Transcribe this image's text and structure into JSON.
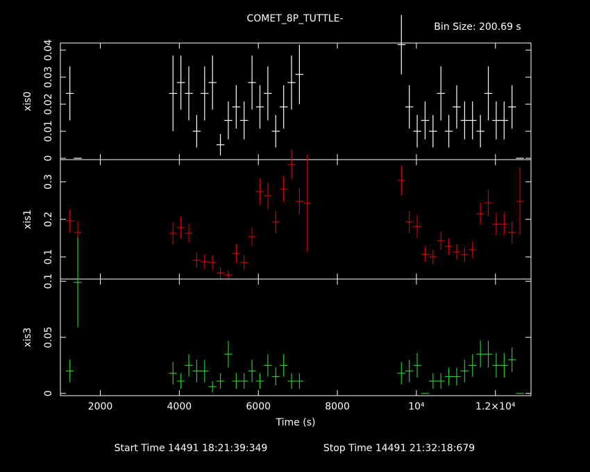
{
  "title": "COMET_8P_TUTTLE-",
  "bin_size": "Bin Size: 200.69 s",
  "start_time": "Start Time 14491 18:21:39:349",
  "stop_time": "Stop Time 14491 21:32:18:679",
  "chart_data": [
    {
      "type": "errorbar",
      "ylabel": "xis0",
      "color": "#ffffff",
      "bin_width": 200.69,
      "x": [
        1230,
        1430,
        3840,
        4040,
        4240,
        4440,
        4640,
        4840,
        5040,
        5240,
        5440,
        5640,
        5840,
        6040,
        6240,
        6440,
        6640,
        6840,
        7040,
        9620,
        9820,
        10020,
        10220,
        10420,
        10620,
        10820,
        11020,
        11220,
        11420,
        11620,
        11820,
        12020,
        12220,
        12420,
        12620
      ],
      "values": [
        0.024,
        0,
        0.024,
        0.028,
        0.024,
        0.01,
        0.024,
        0.028,
        0.005,
        0.014,
        0.019,
        0.014,
        0.028,
        0.019,
        0.024,
        0.01,
        0.019,
        0.028,
        0.031,
        0.042,
        0.019,
        0.01,
        0.014,
        0.01,
        0.024,
        0.01,
        0.019,
        0.014,
        0.014,
        0.01,
        0.024,
        0.014,
        0.014,
        0.019,
        0
      ],
      "errors": [
        0.01,
        0,
        0.014,
        0.01,
        0.01,
        0.006,
        0.01,
        0.01,
        0.004,
        0.007,
        0.008,
        0.007,
        0.01,
        0.008,
        0.01,
        0.006,
        0.008,
        0.01,
        0.011,
        0.011,
        0.008,
        0.006,
        0.007,
        0.006,
        0.01,
        0.006,
        0.008,
        0.007,
        0.007,
        0.006,
        0.01,
        0.007,
        0.007,
        0.008,
        0
      ],
      "xlim": [
        990,
        12900
      ],
      "xticks": [
        2000,
        4000,
        6000,
        8000,
        10000,
        12000
      ],
      "ylim": [
        -0.0005,
        0.0426
      ],
      "yticks": [
        0,
        0.01,
        0.02,
        0.03,
        0.04
      ]
    },
    {
      "type": "errorbar",
      "ylabel": "xis1",
      "color": "#d00000",
      "bin_width": 200.69,
      "x": [
        1230,
        1430,
        3840,
        4040,
        4240,
        4440,
        4640,
        4840,
        5040,
        5240,
        5440,
        5640,
        5840,
        6040,
        6240,
        6440,
        6640,
        6840,
        7040,
        7240,
        9620,
        9820,
        10020,
        10220,
        10420,
        10620,
        10820,
        11020,
        11220,
        11420,
        11620,
        11820,
        12020,
        12220,
        12420,
        12620
      ],
      "values": [
        0.196,
        0.165,
        0.163,
        0.178,
        0.163,
        0.091,
        0.087,
        0.085,
        0.057,
        0.052,
        0.109,
        0.085,
        0.154,
        0.274,
        0.263,
        0.193,
        0.281,
        0.346,
        0.248,
        0.243,
        0.304,
        0.193,
        0.181,
        0.107,
        0.1,
        0.143,
        0.128,
        0.113,
        0.106,
        0.119,
        0.215,
        0.244,
        0.187,
        0.187,
        0.165,
        0.248
      ],
      "errors": [
        0.03,
        0.03,
        0.03,
        0.03,
        0.025,
        0.02,
        0.02,
        0.02,
        0.015,
        0.012,
        0.025,
        0.02,
        0.025,
        0.035,
        0.035,
        0.03,
        0.035,
        0.04,
        0.035,
        0.13,
        0.04,
        0.03,
        0.03,
        0.02,
        0.02,
        0.025,
        0.022,
        0.02,
        0.02,
        0.022,
        0.03,
        0.035,
        0.03,
        0.03,
        0.03,
        0.09
      ],
      "xlim": [
        990,
        12900
      ],
      "xticks": [
        2000,
        4000,
        6000,
        8000,
        10000,
        12000
      ],
      "ylim": [
        0.041,
        0.359
      ],
      "yticks": [
        0.1,
        0.2,
        0.3
      ]
    },
    {
      "type": "errorbar",
      "ylabel": "xis3",
      "color": "#22cc22",
      "bin_width": 200.69,
      "xlabel": "Time (s)",
      "x": [
        1230,
        1430,
        3840,
        4040,
        4240,
        4440,
        4640,
        4840,
        5040,
        5240,
        5440,
        5640,
        5840,
        6040,
        6240,
        6440,
        6640,
        6840,
        7040,
        9620,
        9820,
        10020,
        10220,
        10420,
        10620,
        10820,
        11020,
        11220,
        11420,
        11620,
        11820,
        12020,
        12220,
        12420,
        12620
      ],
      "values": [
        0.02,
        0.099,
        0.018,
        0.011,
        0.025,
        0.02,
        0.02,
        0.006,
        0.011,
        0.035,
        0.011,
        0.011,
        0.02,
        0.011,
        0.025,
        0.015,
        0.025,
        0.011,
        0.011,
        0.018,
        0.02,
        0.025,
        0,
        0.011,
        0.011,
        0.015,
        0.015,
        0.02,
        0.025,
        0.035,
        0.035,
        0.025,
        0.025,
        0.03,
        0
      ],
      "errors": [
        0.01,
        0.04,
        0.01,
        0.007,
        0.01,
        0.01,
        0.01,
        0.005,
        0.007,
        0.012,
        0.007,
        0.007,
        0.01,
        0.007,
        0.01,
        0.008,
        0.01,
        0.007,
        0.007,
        0.01,
        0.01,
        0.011,
        0,
        0.007,
        0.007,
        0.008,
        0.008,
        0.01,
        0.01,
        0.012,
        0.012,
        0.011,
        0.011,
        0.011,
        0
      ],
      "xlim": [
        990,
        12900
      ],
      "xticks": [
        2000,
        4000,
        6000,
        8000,
        {
          "value": 10000,
          "label": "10⁴"
        },
        {
          "value": 12000,
          "label": "1.2×10⁴"
        }
      ],
      "ylim": [
        -0.002,
        0.102
      ],
      "yticks": [
        0,
        0.05,
        {
          "value": 0.1,
          "label": "0.1"
        }
      ]
    }
  ]
}
